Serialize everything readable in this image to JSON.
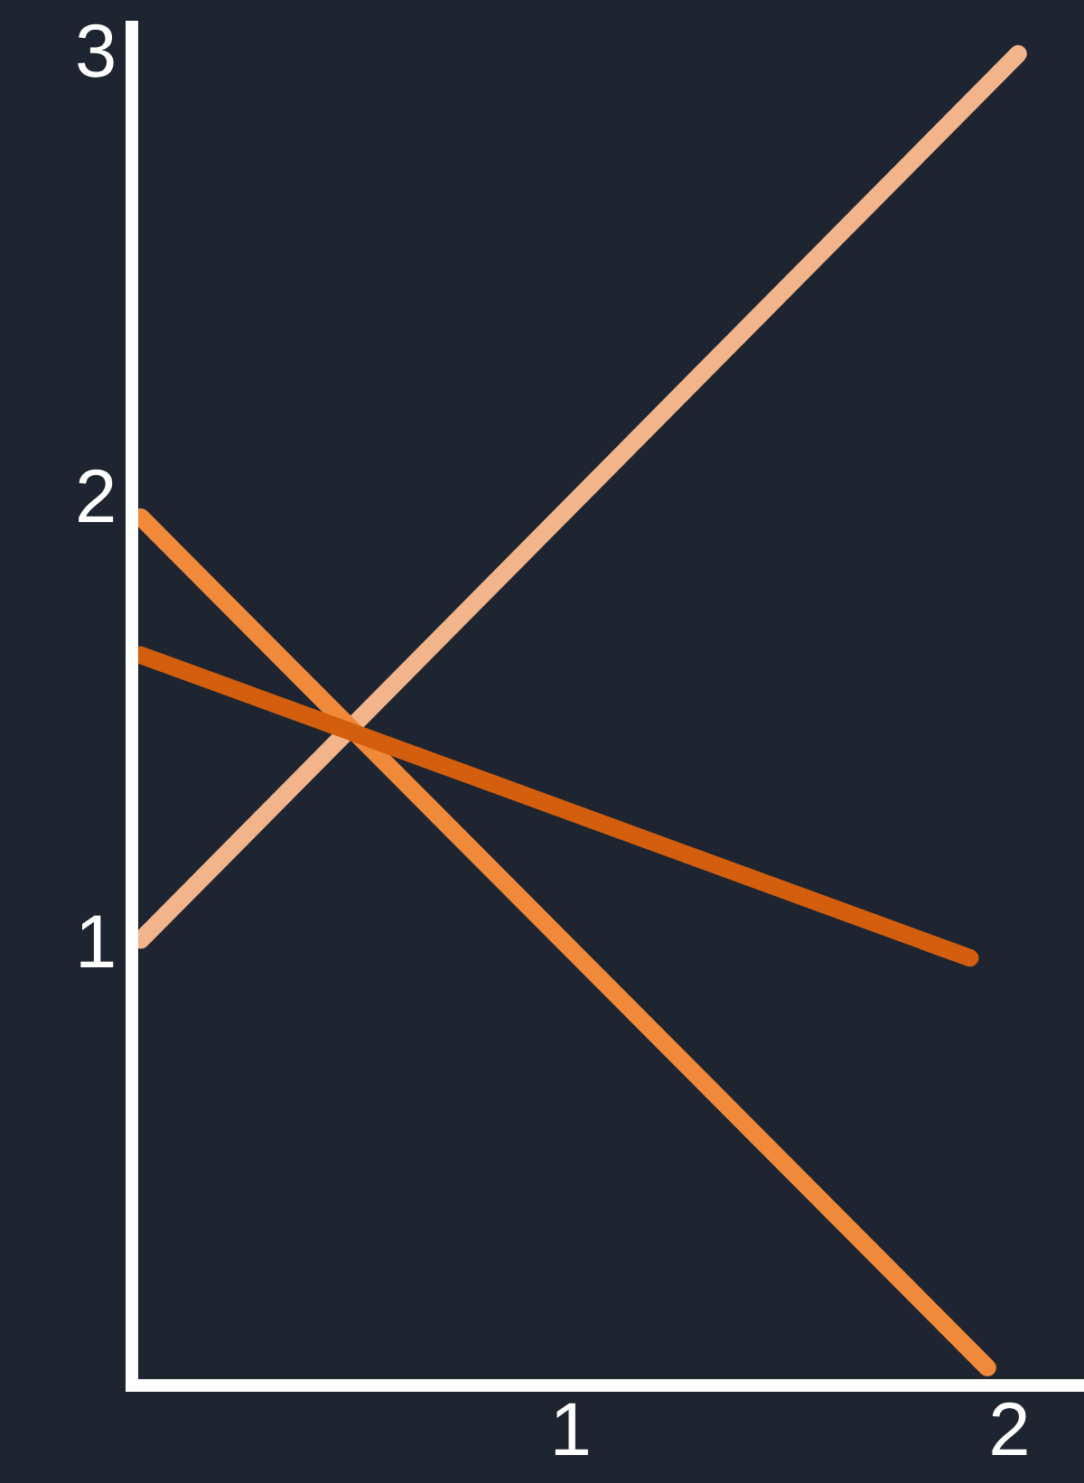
{
  "chart_data": {
    "type": "line",
    "series": [
      {
        "color": "#f2b48a",
        "x": [
          0.02,
          2.02
        ],
        "values": [
          1.0,
          2.99
        ]
      },
      {
        "color": "#f08a3a",
        "x": [
          0.02,
          1.95
        ],
        "values": [
          1.95,
          0.04
        ]
      },
      {
        "color": "#d35f0e",
        "x": [
          0.02,
          1.91
        ],
        "values": [
          1.64,
          0.96
        ]
      }
    ],
    "xlim": [
      0,
      2.17
    ],
    "ylim": [
      0,
      3.05
    ],
    "xticks": [
      1,
      2
    ],
    "yticks": [
      1,
      2,
      3
    ],
    "grid": false,
    "legend": false,
    "marker": "none",
    "line_style": "solid"
  }
}
